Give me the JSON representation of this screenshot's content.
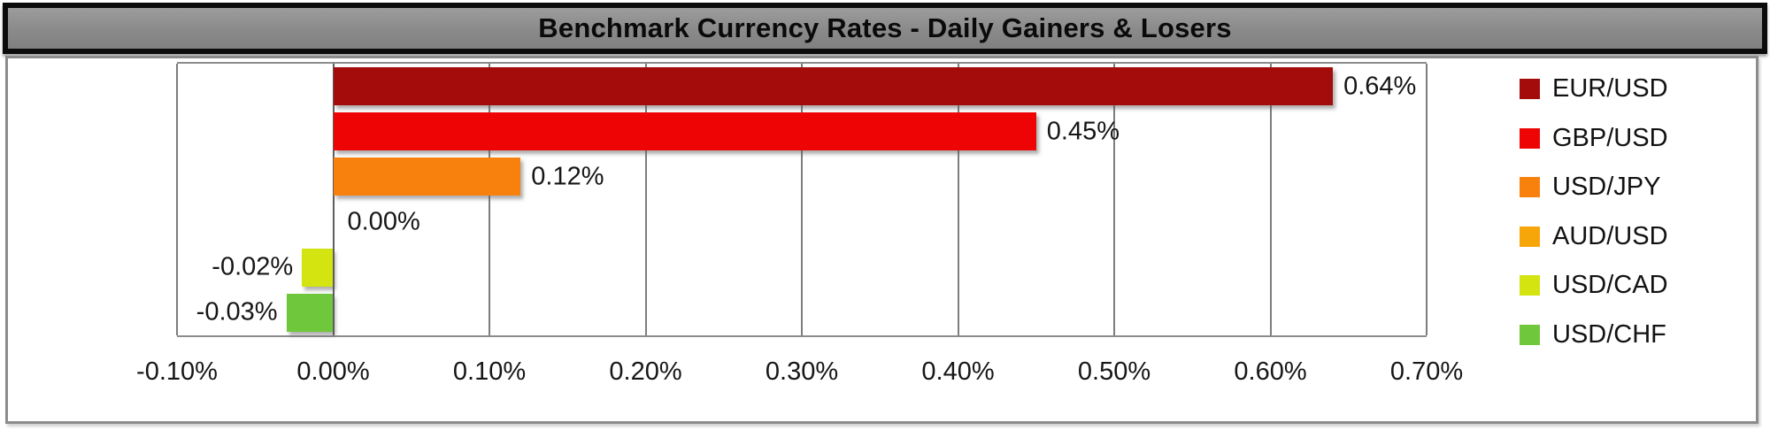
{
  "title_bar": {
    "title": "Benchmark Currency Rates - Daily Gainers & Losers"
  },
  "chart_data": {
    "type": "bar",
    "orientation": "horizontal",
    "title": "Benchmark Currency Rates - Daily Gainers & Losers",
    "categories": [
      "EUR/USD",
      "GBP/USD",
      "USD/JPY",
      "AUD/USD",
      "USD/CAD",
      "USD/CHF"
    ],
    "values": [
      0.64,
      0.45,
      0.12,
      0.0,
      -0.02,
      -0.03
    ],
    "data_labels": [
      "0.64%",
      "0.45%",
      "0.12%",
      "0.00%",
      "-0.02%",
      "-0.03%"
    ],
    "series_colors": [
      "#a40b0b",
      "#ee0404",
      "#f8810d",
      "#f7a609",
      "#d3e410",
      "#6fc83c"
    ],
    "xlabel": "",
    "ylabel": "",
    "xlim": [
      -0.1,
      0.7
    ],
    "grid": true,
    "x_ticks": [
      {
        "value": -0.1,
        "label": "-0.10%"
      },
      {
        "value": 0.0,
        "label": "0.00%"
      },
      {
        "value": 0.1,
        "label": "0.10%"
      },
      {
        "value": 0.2,
        "label": "0.20%"
      },
      {
        "value": 0.3,
        "label": "0.30%"
      },
      {
        "value": 0.4,
        "label": "0.40%"
      },
      {
        "value": 0.5,
        "label": "0.50%"
      },
      {
        "value": 0.6,
        "label": "0.60%"
      },
      {
        "value": 0.7,
        "label": "0.70%"
      }
    ],
    "legend_position": "right",
    "legend": [
      {
        "label": "EUR/USD",
        "color": "#a40b0b"
      },
      {
        "label": "GBP/USD",
        "color": "#ee0404"
      },
      {
        "label": "USD/JPY",
        "color": "#f8810d"
      },
      {
        "label": "AUD/USD",
        "color": "#f7a609"
      },
      {
        "label": "USD/CAD",
        "color": "#d3e410"
      },
      {
        "label": "USD/CHF",
        "color": "#6fc83c"
      }
    ],
    "style_colors": {
      "gridline": "#7d7d7d",
      "zero_axis": "#5f5f5f",
      "plot_border": "#8c8c8c",
      "chart_border": "#8c8c8c",
      "title_bg": "#8a8a8a",
      "title_border": "#0b0b0b",
      "label_text": "#161616"
    }
  }
}
